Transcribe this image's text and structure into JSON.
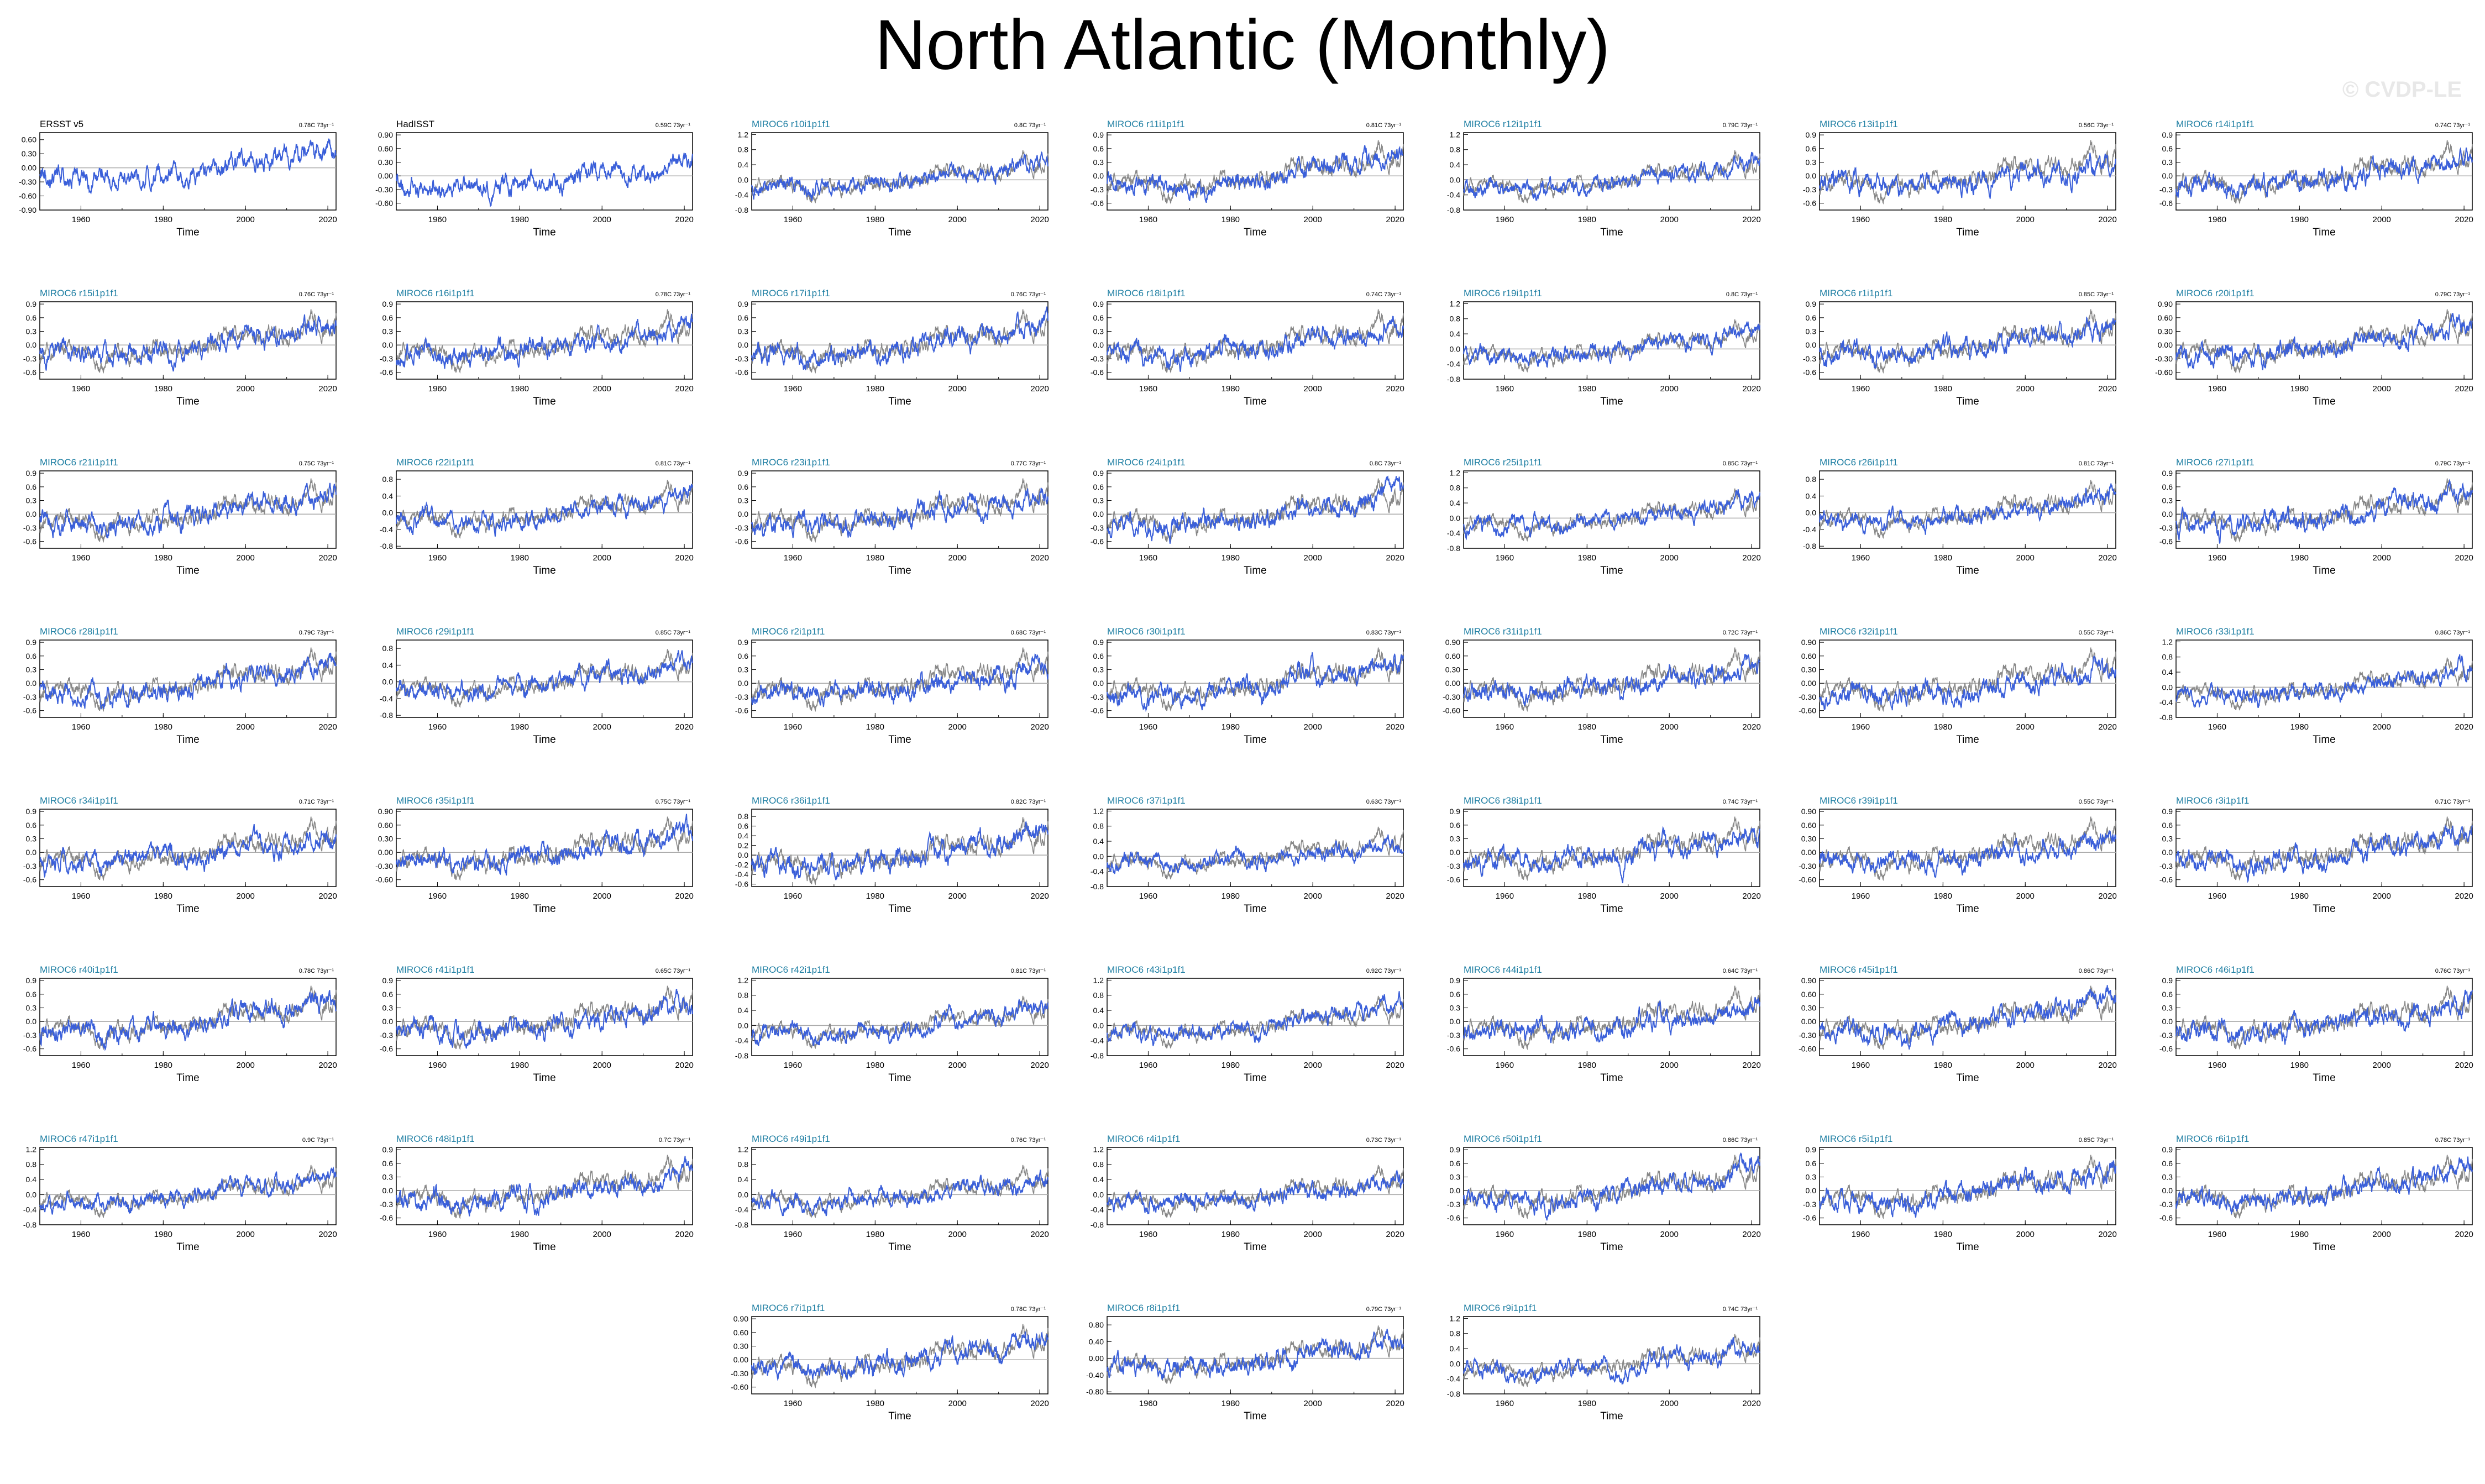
{
  "title": "North Atlantic (Monthly)",
  "copyright": "© CVDP-LE",
  "colors": {
    "observed": "#888888",
    "ensemble": "#3a5fd9",
    "obs_title": "#000000",
    "model_title": "#1f7fa3",
    "zero_line": "#aaaaaa"
  },
  "chart_data": {
    "type": "line",
    "xlabel": "Time",
    "xlim": [
      1950,
      2022
    ],
    "xticks": [
      1960,
      1980,
      2000,
      2020
    ],
    "trend_unit": "73yr⁻¹",
    "series_legend": {
      "observed_reference": "ERSST v5 (gray)",
      "member": "blue"
    },
    "panels": [
      {
        "name": "ERSST v5",
        "trend": "0.78C",
        "yticks": [
          "0.60",
          "0.30",
          "0.00",
          "-0.30",
          "-0.60",
          "-0.90"
        ],
        "ylim": [
          -0.9,
          0.75
        ],
        "obs": true
      },
      {
        "name": "HadISST",
        "trend": "0.59C",
        "yticks": [
          "0.90",
          "0.60",
          "0.30",
          "0.00",
          "-0.30",
          "-0.60"
        ],
        "ylim": [
          -0.75,
          0.95
        ],
        "obs": true
      },
      {
        "name": "MIROC6 r10i1p1f1",
        "trend": "0.8C",
        "yticks": [
          "1.2",
          "0.8",
          "0.4",
          "0.0",
          "-0.4",
          "-0.8"
        ],
        "ylim": [
          -0.8,
          1.25
        ]
      },
      {
        "name": "MIROC6 r11i1p1f1",
        "trend": "0.81C",
        "yticks": [
          "0.9",
          "0.6",
          "0.3",
          "0.0",
          "-0.3",
          "-0.6"
        ],
        "ylim": [
          -0.75,
          0.95
        ]
      },
      {
        "name": "MIROC6 r12i1p1f1",
        "trend": "0.79C",
        "yticks": [
          "1.2",
          "0.8",
          "0.4",
          "0.0",
          "-0.4",
          "-0.8"
        ],
        "ylim": [
          -0.8,
          1.25
        ]
      },
      {
        "name": "MIROC6 r13i1p1f1",
        "trend": "0.56C",
        "yticks": [
          "0.9",
          "0.6",
          "0.3",
          "0.0",
          "-0.3",
          "-0.6"
        ],
        "ylim": [
          -0.75,
          0.95
        ]
      },
      {
        "name": "MIROC6 r14i1p1f1",
        "trend": "0.74C",
        "yticks": [
          "0.9",
          "0.6",
          "0.3",
          "0.0",
          "-0.3",
          "-0.6"
        ],
        "ylim": [
          -0.75,
          0.95
        ]
      },
      {
        "name": "MIROC6 r15i1p1f1",
        "trend": "0.76C",
        "yticks": [
          "0.9",
          "0.6",
          "0.3",
          "0.0",
          "-0.3",
          "-0.6"
        ],
        "ylim": [
          -0.75,
          0.95
        ]
      },
      {
        "name": "MIROC6 r16i1p1f1",
        "trend": "0.78C",
        "yticks": [
          "0.9",
          "0.6",
          "0.3",
          "0.0",
          "-0.3",
          "-0.6"
        ],
        "ylim": [
          -0.75,
          0.95
        ]
      },
      {
        "name": "MIROC6 r17i1p1f1",
        "trend": "0.76C",
        "yticks": [
          "0.9",
          "0.6",
          "0.3",
          "0.0",
          "-0.3",
          "-0.6"
        ],
        "ylim": [
          -0.75,
          0.95
        ]
      },
      {
        "name": "MIROC6 r18i1p1f1",
        "trend": "0.74C",
        "yticks": [
          "0.9",
          "0.6",
          "0.3",
          "0.0",
          "-0.3",
          "-0.6"
        ],
        "ylim": [
          -0.75,
          0.95
        ]
      },
      {
        "name": "MIROC6 r19i1p1f1",
        "trend": "0.8C",
        "yticks": [
          "1.2",
          "0.8",
          "0.4",
          "0.0",
          "-0.4",
          "-0.8"
        ],
        "ylim": [
          -0.8,
          1.25
        ]
      },
      {
        "name": "MIROC6 r1i1p1f1",
        "trend": "0.85C",
        "yticks": [
          "0.9",
          "0.6",
          "0.3",
          "0.0",
          "-0.3",
          "-0.6"
        ],
        "ylim": [
          -0.75,
          0.95
        ]
      },
      {
        "name": "MIROC6 r20i1p1f1",
        "trend": "0.79C",
        "yticks": [
          "0.90",
          "0.60",
          "0.30",
          "0.00",
          "-0.30",
          "-0.60"
        ],
        "ylim": [
          -0.75,
          0.95
        ]
      },
      {
        "name": "MIROC6 r21i1p1f1",
        "trend": "0.75C",
        "yticks": [
          "0.9",
          "0.6",
          "0.3",
          "0.0",
          "-0.3",
          "-0.6"
        ],
        "ylim": [
          -0.75,
          0.95
        ]
      },
      {
        "name": "MIROC6 r22i1p1f1",
        "trend": "0.81C",
        "yticks": [
          "0.8",
          "0.4",
          "0.0",
          "-0.4",
          "-0.8"
        ],
        "ylim": [
          -0.85,
          1.0
        ]
      },
      {
        "name": "MIROC6 r23i1p1f1",
        "trend": "0.77C",
        "yticks": [
          "0.9",
          "0.6",
          "0.3",
          "0.0",
          "-0.3",
          "-0.6"
        ],
        "ylim": [
          -0.75,
          0.95
        ]
      },
      {
        "name": "MIROC6 r24i1p1f1",
        "trend": "0.8C",
        "yticks": [
          "0.9",
          "0.6",
          "0.3",
          "0.0",
          "-0.3",
          "-0.6"
        ],
        "ylim": [
          -0.75,
          0.95
        ]
      },
      {
        "name": "MIROC6 r25i1p1f1",
        "trend": "0.85C",
        "yticks": [
          "1.2",
          "0.8",
          "0.4",
          "0.0",
          "-0.4",
          "-0.8"
        ],
        "ylim": [
          -0.8,
          1.25
        ]
      },
      {
        "name": "MIROC6 r26i1p1f1",
        "trend": "0.81C",
        "yticks": [
          "0.8",
          "0.4",
          "0.0",
          "-0.4",
          "-0.8"
        ],
        "ylim": [
          -0.85,
          1.0
        ]
      },
      {
        "name": "MIROC6 r27i1p1f1",
        "trend": "0.79C",
        "yticks": [
          "0.9",
          "0.6",
          "0.3",
          "0.0",
          "-0.3",
          "-0.6"
        ],
        "ylim": [
          -0.75,
          0.95
        ]
      },
      {
        "name": "MIROC6 r28i1p1f1",
        "trend": "0.79C",
        "yticks": [
          "0.9",
          "0.6",
          "0.3",
          "0.0",
          "-0.3",
          "-0.6"
        ],
        "ylim": [
          -0.75,
          0.95
        ]
      },
      {
        "name": "MIROC6 r29i1p1f1",
        "trend": "0.85C",
        "yticks": [
          "0.8",
          "0.4",
          "0.0",
          "-0.4",
          "-0.8"
        ],
        "ylim": [
          -0.85,
          1.0
        ]
      },
      {
        "name": "MIROC6 r2i1p1f1",
        "trend": "0.68C",
        "yticks": [
          "0.9",
          "0.6",
          "0.3",
          "0.0",
          "-0.3",
          "-0.6"
        ],
        "ylim": [
          -0.75,
          0.95
        ]
      },
      {
        "name": "MIROC6 r30i1p1f1",
        "trend": "0.83C",
        "yticks": [
          "0.9",
          "0.6",
          "0.3",
          "0.0",
          "-0.3",
          "-0.6"
        ],
        "ylim": [
          -0.75,
          0.95
        ]
      },
      {
        "name": "MIROC6 r31i1p1f1",
        "trend": "0.72C",
        "yticks": [
          "0.90",
          "0.60",
          "0.30",
          "0.00",
          "-0.30",
          "-0.60"
        ],
        "ylim": [
          -0.75,
          0.95
        ]
      },
      {
        "name": "MIROC6 r32i1p1f1",
        "trend": "0.55C",
        "yticks": [
          "0.90",
          "0.60",
          "0.30",
          "0.00",
          "-0.30",
          "-0.60"
        ],
        "ylim": [
          -0.75,
          0.95
        ]
      },
      {
        "name": "MIROC6 r33i1p1f1",
        "trend": "0.86C",
        "yticks": [
          "1.2",
          "0.8",
          "0.4",
          "0.0",
          "-0.4",
          "-0.8"
        ],
        "ylim": [
          -0.8,
          1.25
        ]
      },
      {
        "name": "MIROC6 r34i1p1f1",
        "trend": "0.71C",
        "yticks": [
          "0.9",
          "0.6",
          "0.3",
          "0.0",
          "-0.3",
          "-0.6"
        ],
        "ylim": [
          -0.75,
          0.95
        ]
      },
      {
        "name": "MIROC6 r35i1p1f1",
        "trend": "0.75C",
        "yticks": [
          "0.90",
          "0.60",
          "0.30",
          "0.00",
          "-0.30",
          "-0.60"
        ],
        "ylim": [
          -0.75,
          0.95
        ]
      },
      {
        "name": "MIROC6 r36i1p1f1",
        "trend": "0.82C",
        "yticks": [
          "0.8",
          "0.6",
          "0.4",
          "0.2",
          "0.0",
          "-0.2",
          "-0.4",
          "-0.6"
        ],
        "ylim": [
          -0.65,
          0.95
        ]
      },
      {
        "name": "MIROC6 r37i1p1f1",
        "trend": "0.63C",
        "yticks": [
          "1.2",
          "0.8",
          "0.4",
          "0.0",
          "-0.4",
          "-0.8"
        ],
        "ylim": [
          -0.8,
          1.25
        ]
      },
      {
        "name": "MIROC6 r38i1p1f1",
        "trend": "0.74C",
        "yticks": [
          "0.9",
          "0.6",
          "0.3",
          "0.0",
          "-0.3",
          "-0.6"
        ],
        "ylim": [
          -0.75,
          0.95
        ]
      },
      {
        "name": "MIROC6 r39i1p1f1",
        "trend": "0.55C",
        "yticks": [
          "0.90",
          "0.60",
          "0.30",
          "0.00",
          "-0.30",
          "-0.60"
        ],
        "ylim": [
          -0.75,
          0.95
        ]
      },
      {
        "name": "MIROC6 r3i1p1f1",
        "trend": "0.71C",
        "yticks": [
          "0.9",
          "0.6",
          "0.3",
          "0.0",
          "-0.3",
          "-0.6"
        ],
        "ylim": [
          -0.75,
          0.95
        ]
      },
      {
        "name": "MIROC6 r40i1p1f1",
        "trend": "0.78C",
        "yticks": [
          "0.9",
          "0.6",
          "0.3",
          "0.0",
          "-0.3",
          "-0.6"
        ],
        "ylim": [
          -0.75,
          0.95
        ]
      },
      {
        "name": "MIROC6 r41i1p1f1",
        "trend": "0.65C",
        "yticks": [
          "0.9",
          "0.6",
          "0.3",
          "0.0",
          "-0.3",
          "-0.6"
        ],
        "ylim": [
          -0.75,
          0.95
        ]
      },
      {
        "name": "MIROC6 r42i1p1f1",
        "trend": "0.81C",
        "yticks": [
          "1.2",
          "0.8",
          "0.4",
          "0.0",
          "-0.4",
          "-0.8"
        ],
        "ylim": [
          -0.8,
          1.25
        ]
      },
      {
        "name": "MIROC6 r43i1p1f1",
        "trend": "0.92C",
        "yticks": [
          "1.2",
          "0.8",
          "0.4",
          "0.0",
          "-0.4",
          "-0.8"
        ],
        "ylim": [
          -0.8,
          1.25
        ]
      },
      {
        "name": "MIROC6 r44i1p1f1",
        "trend": "0.64C",
        "yticks": [
          "0.9",
          "0.6",
          "0.3",
          "0.0",
          "-0.3",
          "-0.6"
        ],
        "ylim": [
          -0.75,
          0.95
        ]
      },
      {
        "name": "MIROC6 r45i1p1f1",
        "trend": "0.86C",
        "yticks": [
          "0.90",
          "0.60",
          "0.30",
          "0.00",
          "-0.30",
          "-0.60"
        ],
        "ylim": [
          -0.75,
          0.95
        ]
      },
      {
        "name": "MIROC6 r46i1p1f1",
        "trend": "0.76C",
        "yticks": [
          "0.9",
          "0.6",
          "0.3",
          "0.0",
          "-0.3",
          "-0.6"
        ],
        "ylim": [
          -0.75,
          0.95
        ]
      },
      {
        "name": "MIROC6 r47i1p1f1",
        "trend": "0.9C",
        "yticks": [
          "1.2",
          "0.8",
          "0.4",
          "0.0",
          "-0.4",
          "-0.8"
        ],
        "ylim": [
          -0.8,
          1.25
        ]
      },
      {
        "name": "MIROC6 r48i1p1f1",
        "trend": "0.7C",
        "yticks": [
          "0.9",
          "0.6",
          "0.3",
          "0.0",
          "-0.3",
          "-0.6"
        ],
        "ylim": [
          -0.75,
          0.95
        ]
      },
      {
        "name": "MIROC6 r49i1p1f1",
        "trend": "0.76C",
        "yticks": [
          "1.2",
          "0.8",
          "0.4",
          "0.0",
          "-0.4",
          "-0.8"
        ],
        "ylim": [
          -0.8,
          1.25
        ]
      },
      {
        "name": "MIROC6 r4i1p1f1",
        "trend": "0.73C",
        "yticks": [
          "1.2",
          "0.8",
          "0.4",
          "0.0",
          "-0.4",
          "-0.8"
        ],
        "ylim": [
          -0.8,
          1.25
        ]
      },
      {
        "name": "MIROC6 r50i1p1f1",
        "trend": "0.86C",
        "yticks": [
          "0.9",
          "0.6",
          "0.3",
          "0.0",
          "-0.3",
          "-0.6"
        ],
        "ylim": [
          -0.75,
          0.95
        ]
      },
      {
        "name": "MIROC6 r5i1p1f1",
        "trend": "0.85C",
        "yticks": [
          "0.9",
          "0.6",
          "0.3",
          "0.0",
          "-0.3",
          "-0.6"
        ],
        "ylim": [
          -0.75,
          0.95
        ]
      },
      {
        "name": "MIROC6 r6i1p1f1",
        "trend": "0.78C",
        "yticks": [
          "0.9",
          "0.6",
          "0.3",
          "0.0",
          "-0.3",
          "-0.6"
        ],
        "ylim": [
          -0.75,
          0.95
        ]
      },
      {
        "name": "MIROC6 r7i1p1f1",
        "trend": "0.78C",
        "yticks": [
          "0.90",
          "0.60",
          "0.30",
          "0.00",
          "-0.30",
          "-0.60"
        ],
        "ylim": [
          -0.75,
          0.95
        ]
      },
      {
        "name": "MIROC6 r8i1p1f1",
        "trend": "0.79C",
        "yticks": [
          "0.80",
          "0.40",
          "0.00",
          "-0.40",
          "-0.80"
        ],
        "ylim": [
          -0.85,
          1.0
        ]
      },
      {
        "name": "MIROC6 r9i1p1f1",
        "trend": "0.74C",
        "yticks": [
          "1.2",
          "0.8",
          "0.4",
          "0.0",
          "-0.4",
          "-0.8"
        ],
        "ylim": [
          -0.8,
          1.25
        ]
      }
    ]
  }
}
